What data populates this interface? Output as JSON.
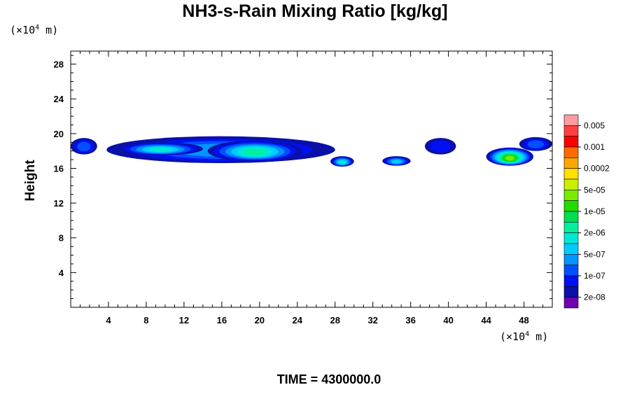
{
  "title": "NH3-s-Rain Mixing Ratio [kg/kg]",
  "time_label": "TIME = 4300000.0",
  "y_unit": {
    "prefix": "(×10",
    "exp": "4",
    "suffix": " m)"
  },
  "x_unit": {
    "prefix": "(×10",
    "exp": "4",
    "suffix": " m)"
  },
  "chart_data": {
    "type": "heatmap",
    "title": "NH3-s-Rain Mixing Ratio [kg/kg]",
    "xlabel": "",
    "ylabel": "Height",
    "xlim": [
      0,
      51
    ],
    "ylim": [
      0,
      29.5
    ],
    "x_ticks": [
      4,
      8,
      12,
      16,
      20,
      24,
      28,
      32,
      36,
      40,
      44,
      48
    ],
    "y_ticks": [
      4,
      8,
      12,
      16,
      20,
      24,
      28
    ],
    "colorbar": {
      "labels": [
        "0.005",
        "0.001",
        "0.0002",
        "5e-05",
        "1e-05",
        "2e-06",
        "5e-07",
        "1e-07",
        "2e-08"
      ],
      "colors_top_to_bottom": [
        "#ff9aa0",
        "#ff4040",
        "#ff0000",
        "#ff6a00",
        "#ffa500",
        "#ffe000",
        "#c8f000",
        "#7aec00",
        "#20dd00",
        "#00dd50",
        "#00f0a0",
        "#00e8d8",
        "#00ccff",
        "#0095ff",
        "#0050ff",
        "#0010f0",
        "#0a10a8",
        "#7000b0"
      ]
    },
    "regions": [
      {
        "x": [
          0,
          2.8
        ],
        "y": [
          17.6,
          19.5
        ],
        "level": 3
      },
      {
        "x": [
          3.8,
          28
        ],
        "y": [
          16.6,
          19.7
        ],
        "level": 4
      },
      {
        "x": [
          5,
          14
        ],
        "y": [
          17.5,
          19
        ],
        "level": 6
      },
      {
        "x": [
          14.5,
          24.5
        ],
        "y": [
          16.8,
          19.2
        ],
        "level": 7
      },
      {
        "x": [
          27.5,
          30
        ],
        "y": [
          16.2,
          17.4
        ],
        "level": 6
      },
      {
        "x": [
          33,
          36
        ],
        "y": [
          16.3,
          17.4
        ],
        "level": 5
      },
      {
        "x": [
          37.5,
          40.8
        ],
        "y": [
          17.6,
          19.5
        ],
        "level": 2
      },
      {
        "x": [
          44,
          49
        ],
        "y": [
          16.3,
          18.4
        ],
        "level": 10
      },
      {
        "x": [
          47.5,
          51
        ],
        "y": [
          18,
          19.6
        ],
        "level": 3
      }
    ]
  }
}
